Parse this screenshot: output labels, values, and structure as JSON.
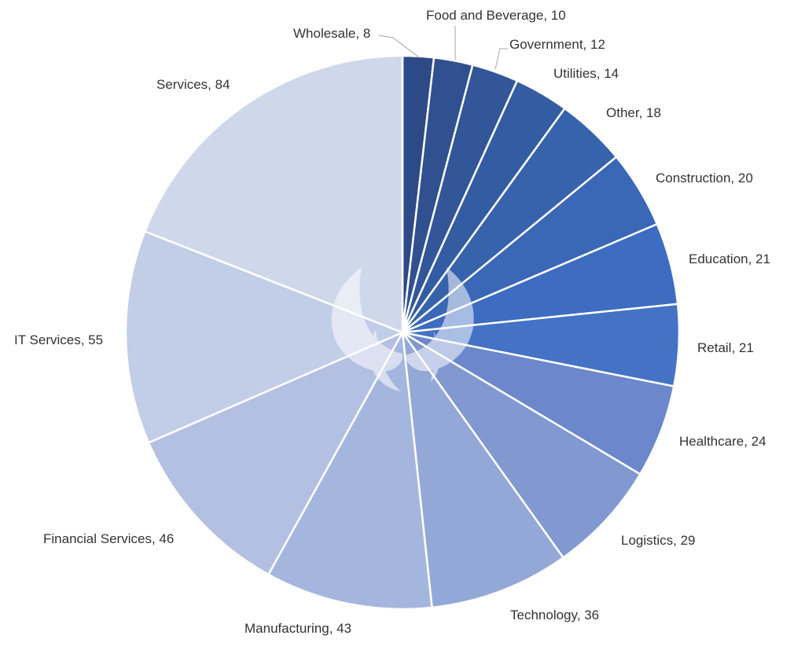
{
  "chart_data": {
    "type": "pie",
    "title": "",
    "start": "12 o'clock",
    "direction": "clockwise",
    "legend": "none",
    "slices": [
      {
        "label": "Wholesale",
        "value": 8,
        "color": "#2e4a86",
        "data_label": "Wholesale, 8"
      },
      {
        "label": "Food and Beverage",
        "value": 10,
        "color": "#30508f",
        "data_label": "Food and Beverage, 10"
      },
      {
        "label": "Government",
        "value": 12,
        "color": "#325698",
        "data_label": "Government, 12"
      },
      {
        "label": "Utilities",
        "value": 14,
        "color": "#345ca2",
        "data_label": "Utilities, 14"
      },
      {
        "label": "Other",
        "value": 18,
        "color": "#3762ac",
        "data_label": "Other, 18"
      },
      {
        "label": "Construction",
        "value": 20,
        "color": "#3a67b6",
        "data_label": "Construction, 20"
      },
      {
        "label": "Education",
        "value": 21,
        "color": "#3d6cc0",
        "data_label": "Education, 21"
      },
      {
        "label": "Retail",
        "value": 21,
        "color": "#4472c4",
        "data_label": "Retail, 21"
      },
      {
        "label": "Healthcare",
        "value": 24,
        "color": "#6c87cb",
        "data_label": "Healthcare, 24"
      },
      {
        "label": "Logistics",
        "value": 29,
        "color": "#8198d1",
        "data_label": "Logistics, 29"
      },
      {
        "label": "Technology",
        "value": 36,
        "color": "#94a8d7",
        "data_label": "Technology, 36"
      },
      {
        "label": "Manufacturing",
        "value": 43,
        "color": "#a5b6de",
        "data_label": "Manufacturing, 43"
      },
      {
        "label": "Financial Services",
        "value": 46,
        "color": "#b3c0e2",
        "data_label": "Financial Services, 46"
      },
      {
        "label": "IT Services",
        "value": 55,
        "color": "#c2cde7",
        "data_label": "IT Services, 55"
      },
      {
        "label": "Services",
        "value": 84,
        "color": "#cfd8ea",
        "data_label": "Services, 84"
      }
    ]
  }
}
